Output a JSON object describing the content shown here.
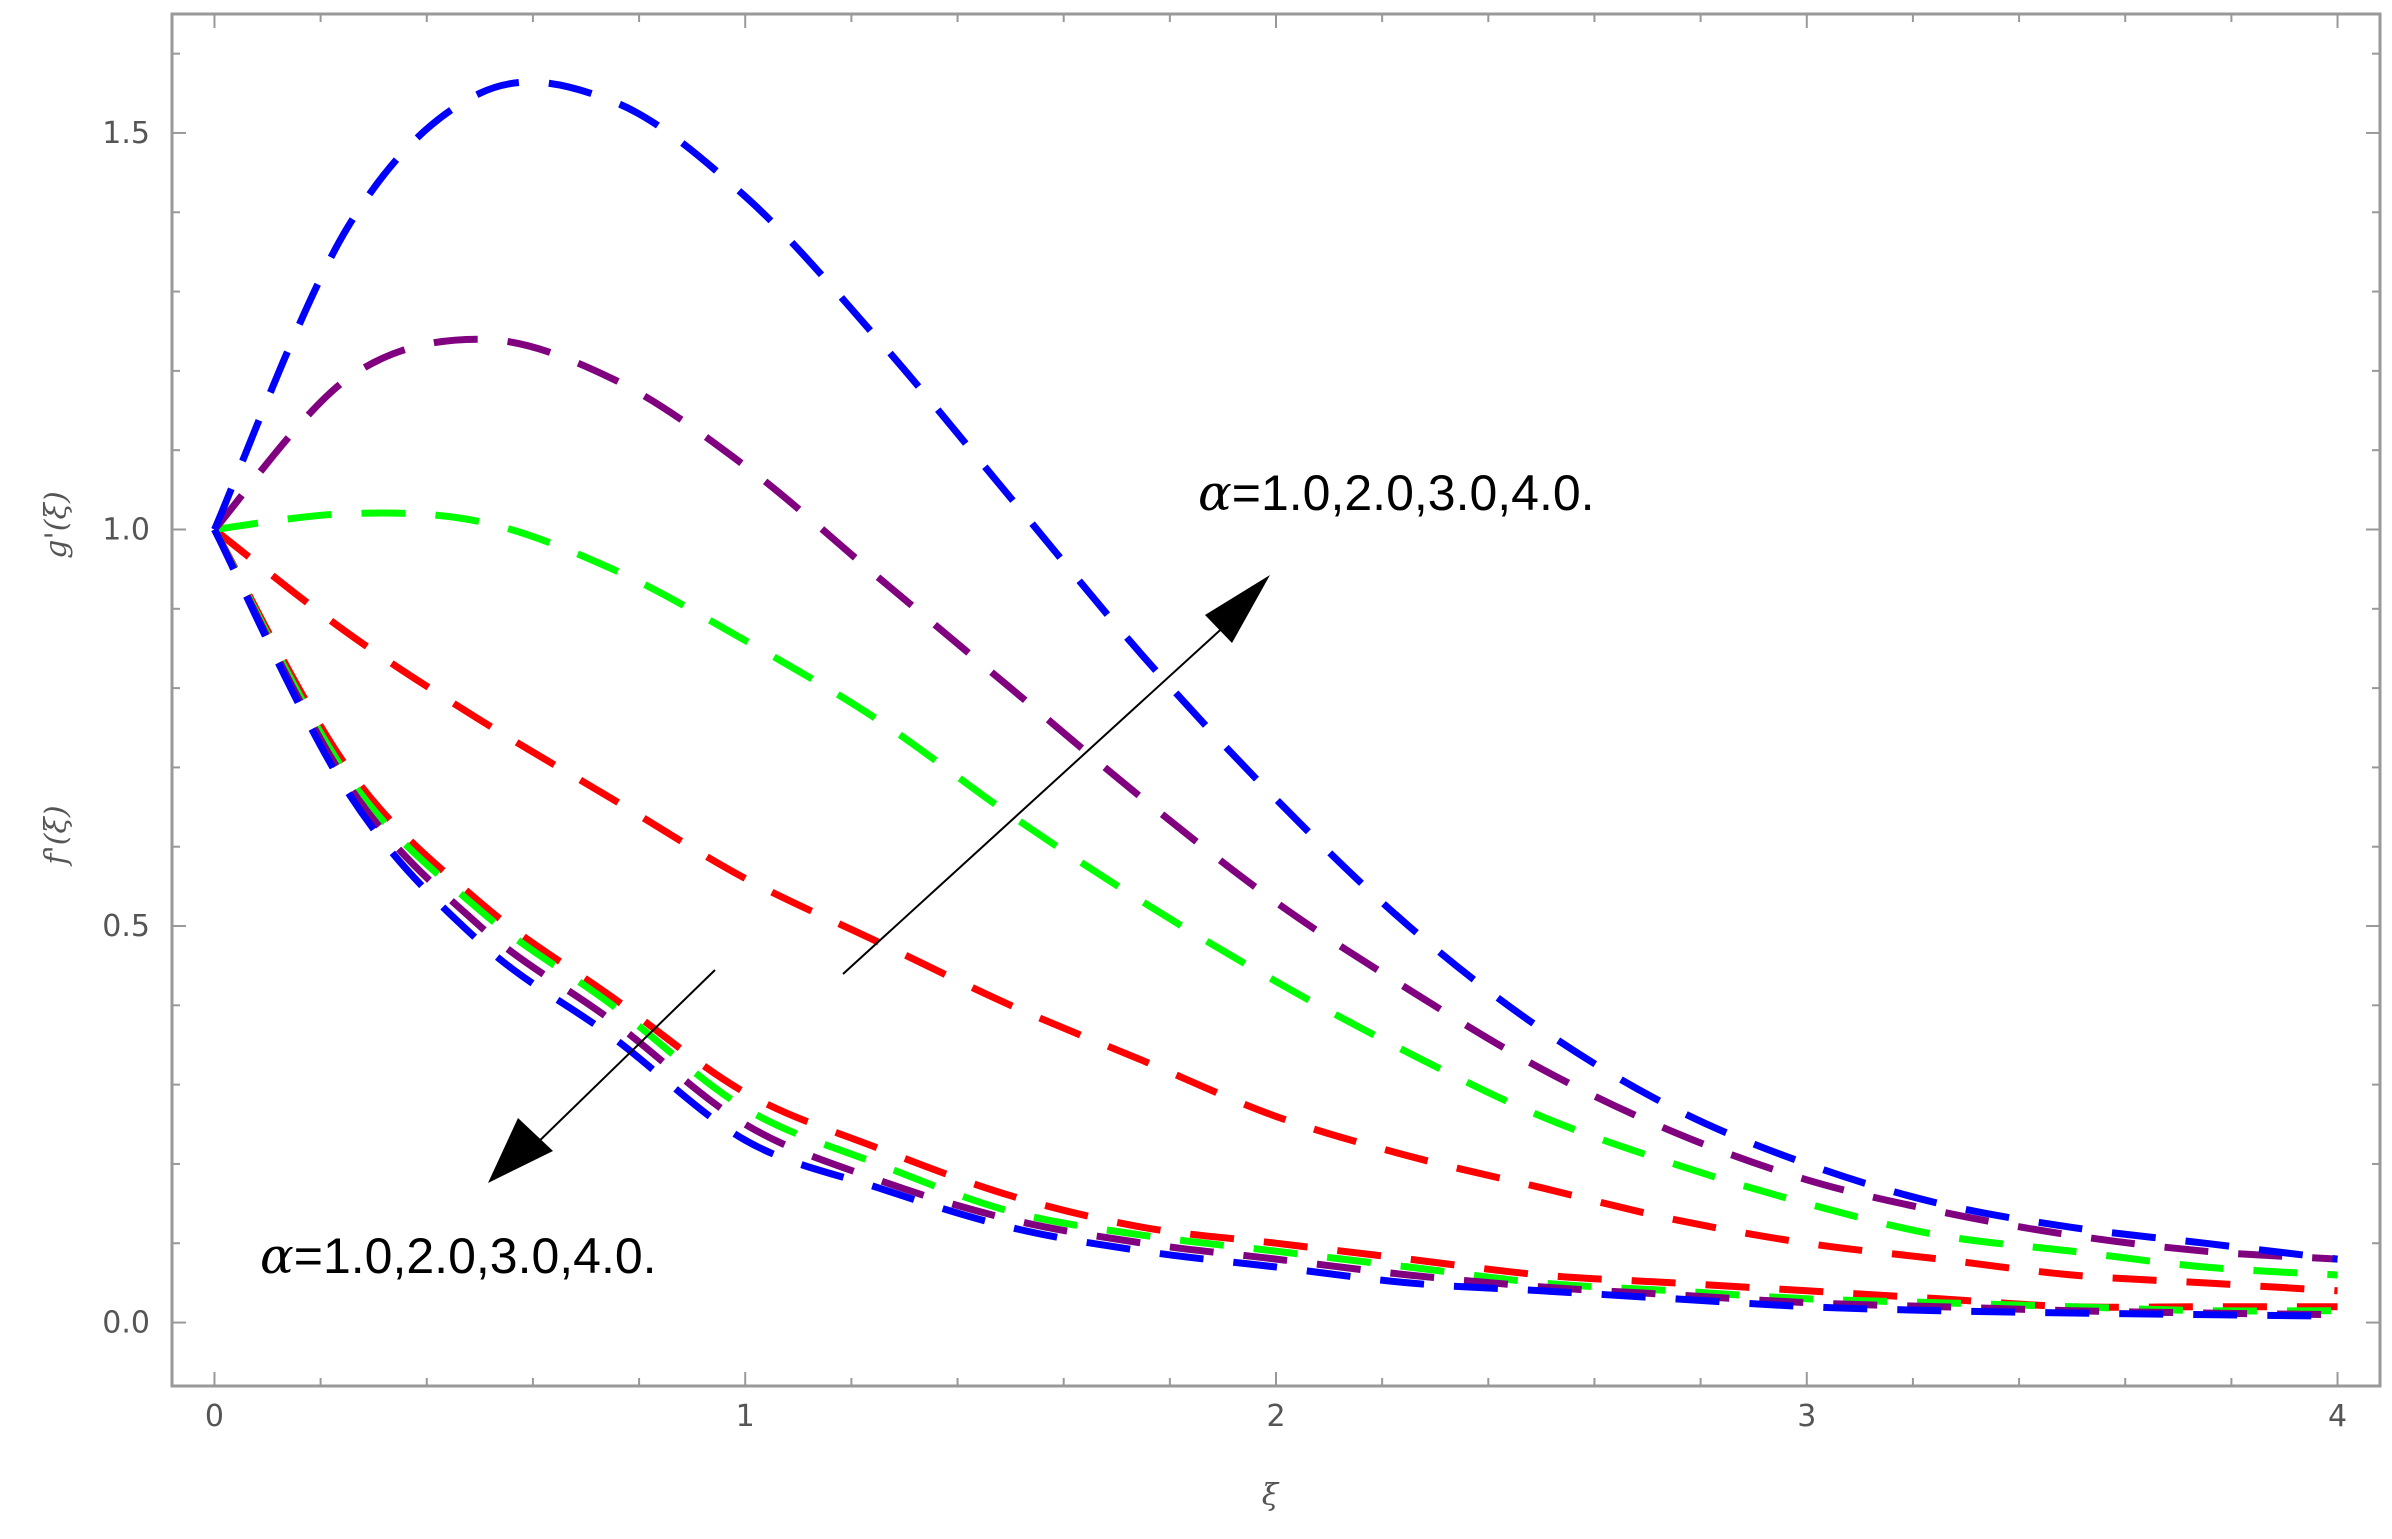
{
  "chart_data": {
    "type": "line",
    "title": "",
    "xlabel": "ξ",
    "ylabels": [
      "g'(ξ)",
      "f'(ξ)"
    ],
    "xlim": [
      -0.08,
      4.08
    ],
    "ylim": [
      -0.08,
      1.65
    ],
    "xticks": [
      "0",
      "1",
      "2",
      "3",
      "4"
    ],
    "yticks": [
      "0.0",
      "0.5",
      "1.0",
      "1.5"
    ],
    "grid": false,
    "annotations": [
      {
        "greek": "α",
        "text": "=1.0,2.0,3.0,4.0.",
        "arrow": "increasing α (g')"
      },
      {
        "greek": "α",
        "text": "=1.0,2.0,3.0,4.0.",
        "arrow": "increasing α (f')"
      }
    ],
    "colors": {
      "series1": "#ff0000",
      "series2": "#00ff00",
      "series3": "#800080",
      "series4": "#0000ff"
    },
    "x": [
      0.0,
      0.25,
      0.5,
      0.75,
      1.0,
      1.25,
      1.5,
      1.75,
      2.0,
      2.25,
      2.5,
      2.75,
      3.0,
      3.25,
      3.5,
      3.75,
      4.0
    ],
    "series": [
      {
        "group": "g'",
        "color": "#ff0000",
        "values": [
          1.0,
          0.87,
          0.76,
          0.66,
          0.56,
          0.48,
          0.4,
          0.33,
          0.26,
          0.21,
          0.17,
          0.13,
          0.1,
          0.08,
          0.06,
          0.05,
          0.04
        ]
      },
      {
        "group": "g'",
        "color": "#00ff00",
        "values": [
          1.0,
          1.02,
          1.01,
          0.95,
          0.86,
          0.76,
          0.64,
          0.53,
          0.43,
          0.34,
          0.26,
          0.2,
          0.15,
          0.11,
          0.09,
          0.07,
          0.06
        ]
      },
      {
        "group": "g'",
        "color": "#800080",
        "values": [
          1.0,
          1.19,
          1.24,
          1.19,
          1.08,
          0.94,
          0.8,
          0.66,
          0.53,
          0.42,
          0.32,
          0.24,
          0.18,
          0.14,
          0.11,
          0.09,
          0.08
        ]
      },
      {
        "group": "g'",
        "color": "#0000ff",
        "values": [
          1.0,
          1.38,
          1.55,
          1.54,
          1.42,
          1.24,
          1.04,
          0.84,
          0.66,
          0.5,
          0.37,
          0.27,
          0.2,
          0.15,
          0.12,
          0.1,
          0.08
        ]
      },
      {
        "group": "f'",
        "color": "#ff0000",
        "values": [
          1.0,
          0.7,
          0.53,
          0.41,
          0.29,
          0.22,
          0.16,
          0.12,
          0.1,
          0.08,
          0.06,
          0.05,
          0.04,
          0.03,
          0.02,
          0.02,
          0.02
        ]
      },
      {
        "group": "f'",
        "color": "#00ff00",
        "values": [
          1.0,
          0.69,
          0.52,
          0.4,
          0.27,
          0.2,
          0.14,
          0.11,
          0.09,
          0.07,
          0.05,
          0.04,
          0.03,
          0.025,
          0.02,
          0.015,
          0.015
        ]
      },
      {
        "group": "f'",
        "color": "#800080",
        "values": [
          1.0,
          0.68,
          0.5,
          0.38,
          0.25,
          0.18,
          0.13,
          0.1,
          0.08,
          0.06,
          0.045,
          0.035,
          0.025,
          0.02,
          0.015,
          0.012,
          0.01
        ]
      },
      {
        "group": "f'",
        "color": "#0000ff",
        "values": [
          1.0,
          0.67,
          0.48,
          0.36,
          0.23,
          0.17,
          0.12,
          0.09,
          0.07,
          0.05,
          0.04,
          0.03,
          0.02,
          0.015,
          0.012,
          0.01,
          0.008
        ]
      }
    ]
  }
}
